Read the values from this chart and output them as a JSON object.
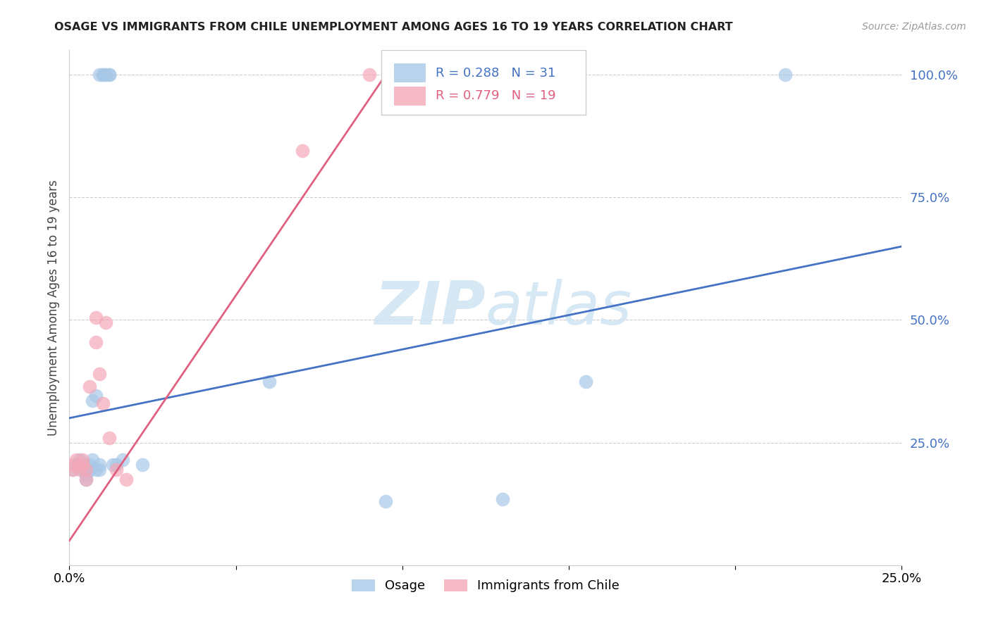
{
  "title": "OSAGE VS IMMIGRANTS FROM CHILE UNEMPLOYMENT AMONG AGES 16 TO 19 YEARS CORRELATION CHART",
  "source": "Source: ZipAtlas.com",
  "ylabel": "Unemployment Among Ages 16 to 19 years",
  "xlim": [
    0.0,
    0.25
  ],
  "ylim": [
    0.0,
    1.05
  ],
  "yticks": [
    0.0,
    0.25,
    0.5,
    0.75,
    1.0
  ],
  "ytick_labels": [
    "",
    "25.0%",
    "50.0%",
    "75.0%",
    "100.0%"
  ],
  "xticks": [
    0.0,
    0.05,
    0.1,
    0.15,
    0.2,
    0.25
  ],
  "xtick_labels": [
    "0.0%",
    "",
    "",
    "",
    "",
    "25.0%"
  ],
  "legend_labels": [
    "Osage",
    "Immigrants from Chile"
  ],
  "R_osage": 0.288,
  "N_osage": 31,
  "R_chile": 0.779,
  "N_chile": 19,
  "osage_color": "#a8c8e8",
  "chile_color": "#f4a8b8",
  "osage_line_color": "#4472c4",
  "chile_line_color": "#e06080",
  "watermark_color": "#d0e4f4",
  "osage_x": [
    0.001,
    0.002,
    0.003,
    0.004,
    0.004,
    0.005,
    0.005,
    0.005,
    0.006,
    0.006,
    0.007,
    0.007,
    0.008,
    0.008,
    0.009,
    0.009,
    0.009,
    0.01,
    0.01,
    0.011,
    0.012,
    0.012,
    0.013,
    0.014,
    0.016,
    0.022,
    0.06,
    0.095,
    0.13,
    0.155,
    0.215
  ],
  "osage_y": [
    0.195,
    0.205,
    0.215,
    0.195,
    0.205,
    0.195,
    0.185,
    0.175,
    0.195,
    0.205,
    0.215,
    0.335,
    0.195,
    0.345,
    0.195,
    0.205,
    1.0,
    1.0,
    1.0,
    1.0,
    1.0,
    1.0,
    0.205,
    0.205,
    0.215,
    0.205,
    0.375,
    0.13,
    0.135,
    0.375,
    1.0
  ],
  "chile_x": [
    0.001,
    0.001,
    0.002,
    0.003,
    0.004,
    0.004,
    0.005,
    0.005,
    0.006,
    0.008,
    0.008,
    0.009,
    0.01,
    0.011,
    0.012,
    0.014,
    0.017,
    0.07,
    0.09
  ],
  "chile_y": [
    0.195,
    0.205,
    0.215,
    0.195,
    0.215,
    0.205,
    0.195,
    0.175,
    0.365,
    0.505,
    0.455,
    0.39,
    0.33,
    0.495,
    0.26,
    0.195,
    0.175,
    0.845,
    1.0
  ],
  "blue_trendline_x": [
    0.0,
    0.25
  ],
  "blue_trendline_y": [
    0.3,
    0.65
  ],
  "pink_trendline_x": [
    0.0,
    0.1
  ],
  "pink_trendline_y": [
    0.05,
    1.05
  ]
}
